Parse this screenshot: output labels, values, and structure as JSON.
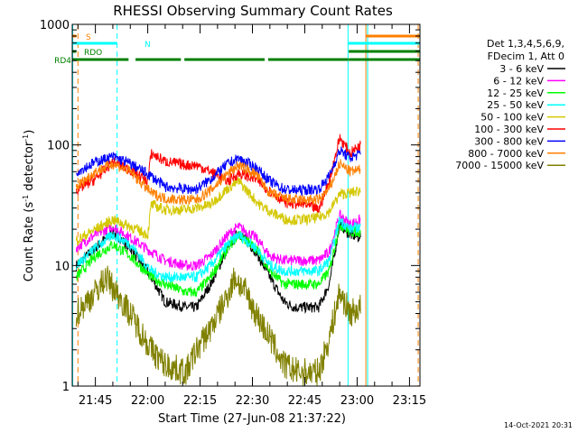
{
  "chart_data": {
    "type": "line",
    "title": "RHESSI Observing Summary Count Rates",
    "xlabel": "Start Time (27-Jun-08 21:37:22)",
    "ylabel_main": "Count Rate (s",
    "ylabel_sup1": "-1",
    "ylabel_mid": " detector",
    "ylabel_sup2": "-1",
    "ylabel_end": ")",
    "yscale": "log",
    "ylim": [
      1,
      1000
    ],
    "xlim_minutes": [
      -6.63,
      93.0
    ],
    "x_ticks": [
      {
        "label": "21:45",
        "min": 0
      },
      {
        "label": "22:00",
        "min": 15
      },
      {
        "label": "22:15",
        "min": 30
      },
      {
        "label": "22:30",
        "min": 45
      },
      {
        "label": "22:45",
        "min": 60
      },
      {
        "label": "23:00",
        "min": 75
      },
      {
        "label": "23:15",
        "min": 90
      }
    ],
    "y_ticks": [
      {
        "label": "1",
        "value": 1
      },
      {
        "label": "10",
        "value": 10
      },
      {
        "label": "100",
        "value": 100
      },
      {
        "label": "1000",
        "value": 1000
      }
    ],
    "legend_header": [
      "Det 1,3,4,5,6,9,",
      "FDecim 1, Att 0"
    ],
    "series": [
      {
        "name": "3 - 6 keV",
        "color": "#000000",
        "points": [
          [
            -5.5,
            10
          ],
          [
            0,
            14
          ],
          [
            5,
            19
          ],
          [
            10,
            14
          ],
          [
            16,
            8
          ],
          [
            20,
            5
          ],
          [
            26,
            4.5
          ],
          [
            29,
            4.5
          ],
          [
            33,
            7
          ],
          [
            38,
            14
          ],
          [
            41,
            19
          ],
          [
            46,
            13
          ],
          [
            50,
            8
          ],
          [
            54,
            5
          ],
          [
            57,
            4.5
          ],
          [
            64,
            4.5
          ],
          [
            67,
            7
          ],
          [
            70,
            22
          ],
          [
            73,
            18
          ],
          [
            76,
            17
          ]
        ]
      },
      {
        "name": "6 - 12 keV",
        "color": "#ff00ff",
        "points": [
          [
            -5.5,
            14
          ],
          [
            0,
            18
          ],
          [
            5,
            21
          ],
          [
            10,
            17
          ],
          [
            16,
            13
          ],
          [
            20,
            11
          ],
          [
            26,
            10
          ],
          [
            29,
            10
          ],
          [
            33,
            12
          ],
          [
            38,
            18
          ],
          [
            41,
            21
          ],
          [
            46,
            17
          ],
          [
            50,
            12
          ],
          [
            54,
            11
          ],
          [
            57,
            11
          ],
          [
            64,
            11
          ],
          [
            67,
            13
          ],
          [
            70,
            26
          ],
          [
            73,
            22
          ],
          [
            76,
            24
          ]
        ]
      },
      {
        "name": "12 - 25 keV",
        "color": "#00ff00",
        "points": [
          [
            -5.5,
            8
          ],
          [
            0,
            12
          ],
          [
            5,
            15
          ],
          [
            10,
            12
          ],
          [
            16,
            8
          ],
          [
            20,
            7
          ],
          [
            26,
            6
          ],
          [
            29,
            6
          ],
          [
            33,
            8
          ],
          [
            38,
            14
          ],
          [
            41,
            18
          ],
          [
            46,
            14
          ],
          [
            50,
            9
          ],
          [
            54,
            7
          ],
          [
            57,
            7
          ],
          [
            64,
            7
          ],
          [
            67,
            9
          ],
          [
            70,
            22
          ],
          [
            73,
            19
          ],
          [
            76,
            19
          ]
        ]
      },
      {
        "name": "25 - 50 keV",
        "color": "#00ffff",
        "points": [
          [
            -5.5,
            10
          ],
          [
            0,
            14
          ],
          [
            5,
            18
          ],
          [
            10,
            15
          ],
          [
            16,
            9
          ],
          [
            20,
            8
          ],
          [
            26,
            8
          ],
          [
            29,
            8
          ],
          [
            33,
            10
          ],
          [
            38,
            15
          ],
          [
            41,
            18
          ],
          [
            46,
            14
          ],
          [
            50,
            10
          ],
          [
            54,
            9
          ],
          [
            57,
            9
          ],
          [
            64,
            9
          ],
          [
            67,
            11
          ],
          [
            70,
            24
          ],
          [
            73,
            20
          ],
          [
            76,
            21
          ]
        ]
      },
      {
        "name": "50 - 100 keV",
        "color": "#d4c800",
        "points": [
          [
            -5.5,
            16
          ],
          [
            0,
            20
          ],
          [
            5,
            24
          ],
          [
            10,
            21
          ],
          [
            15,
            18
          ],
          [
            16,
            32
          ],
          [
            20,
            29
          ],
          [
            26,
            29
          ],
          [
            29,
            30
          ],
          [
            33,
            32
          ],
          [
            38,
            44
          ],
          [
            41,
            50
          ],
          [
            44,
            40
          ],
          [
            47,
            32
          ],
          [
            51,
            27
          ],
          [
            55,
            24
          ],
          [
            60,
            24
          ],
          [
            64,
            25
          ],
          [
            67,
            28
          ],
          [
            70,
            39
          ],
          [
            73,
            40
          ],
          [
            76,
            42
          ]
        ]
      },
      {
        "name": "100 - 300 keV",
        "color": "#ff0000",
        "points": [
          [
            -5.5,
            42
          ],
          [
            0,
            52
          ],
          [
            5,
            72
          ],
          [
            10,
            62
          ],
          [
            15,
            50
          ],
          [
            16,
            85
          ],
          [
            20,
            73
          ],
          [
            26,
            68
          ],
          [
            29,
            68
          ],
          [
            33,
            60
          ],
          [
            38,
            50
          ],
          [
            41,
            58
          ],
          [
            46,
            52
          ],
          [
            51,
            39
          ],
          [
            55,
            33
          ],
          [
            60,
            32
          ],
          [
            64,
            29
          ],
          [
            67,
            50
          ],
          [
            70,
            115
          ],
          [
            73,
            85
          ],
          [
            76,
            100
          ]
        ]
      },
      {
        "name": "300 - 800 keV",
        "color": "#0000ff",
        "points": [
          [
            -5.5,
            60
          ],
          [
            0,
            72
          ],
          [
            5,
            80
          ],
          [
            10,
            70
          ],
          [
            16,
            55
          ],
          [
            20,
            45
          ],
          [
            26,
            43
          ],
          [
            29,
            43
          ],
          [
            33,
            52
          ],
          [
            38,
            70
          ],
          [
            41,
            77
          ],
          [
            46,
            65
          ],
          [
            50,
            50
          ],
          [
            54,
            43
          ],
          [
            57,
            42
          ],
          [
            64,
            43
          ],
          [
            67,
            55
          ],
          [
            70,
            90
          ],
          [
            73,
            78
          ],
          [
            76,
            85
          ]
        ]
      },
      {
        "name": "800 - 7000 keV",
        "color": "#ff8000",
        "points": [
          [
            -5.5,
            45
          ],
          [
            0,
            60
          ],
          [
            5,
            70
          ],
          [
            10,
            60
          ],
          [
            16,
            40
          ],
          [
            20,
            36
          ],
          [
            26,
            35
          ],
          [
            29,
            35
          ],
          [
            33,
            42
          ],
          [
            38,
            58
          ],
          [
            41,
            68
          ],
          [
            46,
            57
          ],
          [
            50,
            40
          ],
          [
            54,
            36
          ],
          [
            57,
            35
          ],
          [
            64,
            35
          ],
          [
            67,
            43
          ],
          [
            70,
            70
          ],
          [
            73,
            60
          ],
          [
            76,
            62
          ]
        ]
      },
      {
        "name": "7000 - 15000 keV",
        "color": "#808000",
        "points": [
          [
            -5.5,
            4
          ],
          [
            0,
            6
          ],
          [
            3,
            8
          ],
          [
            6,
            6
          ],
          [
            10,
            4
          ],
          [
            16,
            2
          ],
          [
            20,
            1.5
          ],
          [
            26,
            1.3
          ],
          [
            29,
            2
          ],
          [
            33,
            3
          ],
          [
            37,
            5
          ],
          [
            40,
            8
          ],
          [
            43,
            6
          ],
          [
            46,
            4
          ],
          [
            50,
            2.5
          ],
          [
            54,
            1.5
          ],
          [
            58,
            1.3
          ],
          [
            64,
            1.3
          ],
          [
            67,
            2.5
          ],
          [
            70,
            6
          ],
          [
            73,
            4
          ],
          [
            76,
            4.5
          ]
        ]
      }
    ],
    "status_bars": [
      {
        "name": "S",
        "color": "#ff8000",
        "segments": [
          [
            -6.5,
            -5.5
          ],
          [
            77.5,
            93
          ]
        ]
      },
      {
        "name": "N",
        "color": "#00ffff",
        "segments": [
          [
            -6.5,
            6.2
          ],
          [
            72.4,
            93
          ]
        ]
      },
      {
        "name": "RDO",
        "color": "#008000",
        "segments": [
          [
            -6.5,
            -5.5
          ],
          [
            72.6,
            93
          ]
        ]
      },
      {
        "name": "RD4",
        "color": "#008000",
        "segments": [
          [
            -6.5,
            9.5
          ],
          [
            11.5,
            24.5
          ],
          [
            25.5,
            48.5
          ],
          [
            49.5,
            72.5
          ],
          [
            72.6,
            93
          ]
        ]
      }
    ],
    "vertical_lines": [
      {
        "color": "#00ffff",
        "style": "solid",
        "min": -6.5
      },
      {
        "color": "#ff8000",
        "style": "dash",
        "min": -5.0
      },
      {
        "color": "#00ffff",
        "style": "dash",
        "min": 6.2
      },
      {
        "color": "#00ffff",
        "style": "solid",
        "min": 72.4
      },
      {
        "color": "#ff8000",
        "style": "solid",
        "min": 77.5
      },
      {
        "color": "#00ffff",
        "style": "solid",
        "min": 78.0
      },
      {
        "color": "#ff8000",
        "style": "dash",
        "min": 92.5
      },
      {
        "color": "#00ffff",
        "style": "dash",
        "min": 93.0
      }
    ],
    "footer_timestamp": "14-Oct-2021 20:31"
  }
}
